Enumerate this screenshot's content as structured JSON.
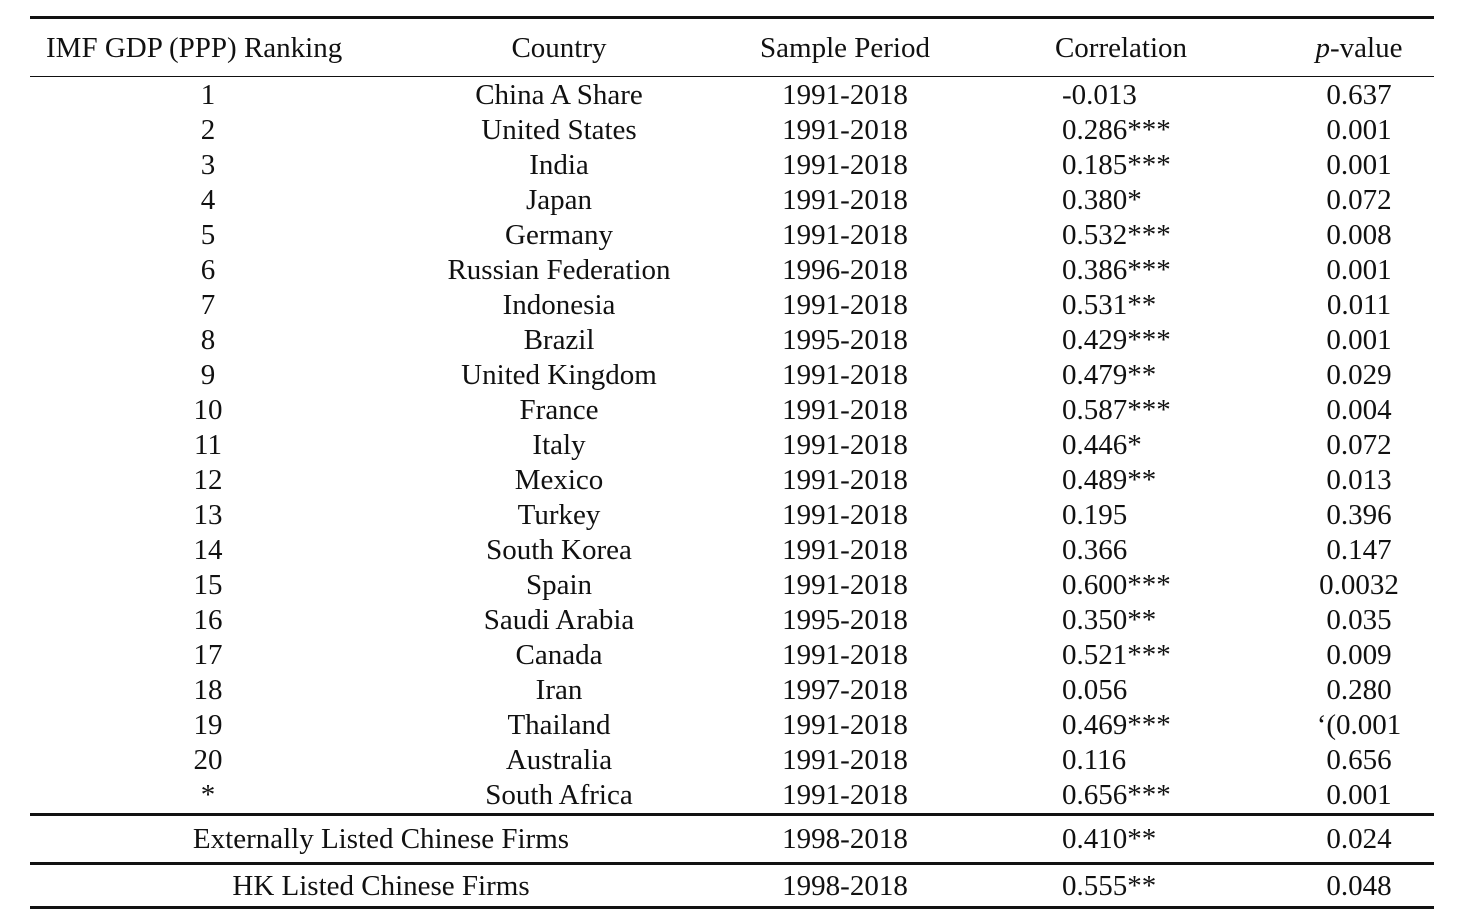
{
  "table": {
    "headers": {
      "rank": "IMF GDP (PPP) Ranking",
      "country": "Country",
      "period": "Sample Period",
      "correlation": "Correlation",
      "pvalue_italic": "p",
      "pvalue_rest": "-value"
    },
    "rows": [
      {
        "rank": "1",
        "country": "China A Share",
        "period": "1991-2018",
        "correlation": "-0.013",
        "pvalue": "0.637"
      },
      {
        "rank": "2",
        "country": "United States",
        "period": "1991-2018",
        "correlation": "0.286***",
        "pvalue": "0.001"
      },
      {
        "rank": "3",
        "country": "India",
        "period": "1991-2018",
        "correlation": "0.185***",
        "pvalue": "0.001"
      },
      {
        "rank": "4",
        "country": "Japan",
        "period": "1991-2018",
        "correlation": "0.380*",
        "pvalue": "0.072"
      },
      {
        "rank": "5",
        "country": "Germany",
        "period": "1991-2018",
        "correlation": "0.532***",
        "pvalue": "0.008"
      },
      {
        "rank": "6",
        "country": "Russian Federation",
        "period": "1996-2018",
        "correlation": "0.386***",
        "pvalue": "0.001"
      },
      {
        "rank": "7",
        "country": "Indonesia",
        "period": "1991-2018",
        "correlation": "0.531**",
        "pvalue": "0.011"
      },
      {
        "rank": "8",
        "country": "Brazil",
        "period": "1995-2018",
        "correlation": "0.429***",
        "pvalue": "0.001"
      },
      {
        "rank": "9",
        "country": "United Kingdom",
        "period": "1991-2018",
        "correlation": "0.479**",
        "pvalue": "0.029"
      },
      {
        "rank": "10",
        "country": "France",
        "period": "1991-2018",
        "correlation": "0.587***",
        "pvalue": "0.004"
      },
      {
        "rank": "11",
        "country": "Italy",
        "period": "1991-2018",
        "correlation": "0.446*",
        "pvalue": "0.072"
      },
      {
        "rank": "12",
        "country": "Mexico",
        "period": "1991-2018",
        "correlation": "0.489**",
        "pvalue": "0.013"
      },
      {
        "rank": "13",
        "country": "Turkey",
        "period": "1991-2018",
        "correlation": "0.195",
        "pvalue": "0.396"
      },
      {
        "rank": "14",
        "country": "South Korea",
        "period": "1991-2018",
        "correlation": "0.366",
        "pvalue": "0.147"
      },
      {
        "rank": "15",
        "country": "Spain",
        "period": "1991-2018",
        "correlation": "0.600***",
        "pvalue": "0.0032"
      },
      {
        "rank": "16",
        "country": "Saudi Arabia",
        "period": "1995-2018",
        "correlation": "0.350**",
        "pvalue": "0.035"
      },
      {
        "rank": "17",
        "country": "Canada",
        "period": "1991-2018",
        "correlation": "0.521***",
        "pvalue": "0.009"
      },
      {
        "rank": "18",
        "country": "Iran",
        "period": "1997-2018",
        "correlation": "0.056",
        "pvalue": "0.280"
      },
      {
        "rank": "19",
        "country": "Thailand",
        "period": "1991-2018",
        "correlation": "0.469***",
        "pvalue": "‘(0.001"
      },
      {
        "rank": "20",
        "country": "Australia",
        "period": "1991-2018",
        "correlation": "0.116",
        "pvalue": "0.656"
      },
      {
        "rank": "*",
        "country": "South Africa",
        "period": "1991-2018",
        "correlation": "0.656***",
        "pvalue": "0.001"
      }
    ],
    "summary_rows": [
      {
        "label": "Externally Listed Chinese Firms",
        "period": "1998-2018",
        "correlation": "0.410**",
        "pvalue": "0.024"
      },
      {
        "label": "HK Listed Chinese Firms",
        "period": "1998-2018",
        "correlation": "0.555**",
        "pvalue": "0.048"
      }
    ]
  }
}
